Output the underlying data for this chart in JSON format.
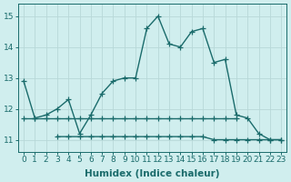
{
  "title": "",
  "xlabel": "Humidex (Indice chaleur)",
  "background_color": "#d0eeee",
  "grid_color": "#b8d8d8",
  "line_color": "#1a6b6b",
  "x_data": [
    0,
    1,
    2,
    3,
    4,
    5,
    6,
    7,
    8,
    9,
    10,
    11,
    12,
    13,
    14,
    15,
    16,
    17,
    18,
    19,
    20,
    21,
    22,
    23
  ],
  "y_main": [
    12.9,
    11.7,
    11.8,
    12.0,
    12.3,
    11.2,
    11.8,
    12.5,
    12.9,
    13.0,
    13.0,
    14.6,
    15.0,
    14.1,
    14.0,
    14.5,
    14.6,
    13.5,
    13.6,
    11.8,
    11.7,
    11.2,
    11.0,
    11.0
  ],
  "y_flat1": [
    11.7,
    11.7,
    11.7,
    11.7,
    11.7,
    11.7,
    11.7,
    11.7,
    11.7,
    11.7,
    11.7,
    11.7,
    11.7,
    11.7,
    11.7,
    11.7,
    11.7,
    11.7,
    11.7,
    11.7,
    null,
    null,
    null,
    null
  ],
  "y_flat2": [
    null,
    null,
    null,
    11.1,
    11.1,
    11.1,
    11.1,
    11.1,
    11.1,
    11.1,
    11.1,
    11.1,
    11.1,
    11.1,
    11.1,
    11.1,
    11.1,
    11.0,
    11.0,
    11.0,
    11.0,
    11.0,
    11.0,
    11.0
  ],
  "ylim": [
    10.6,
    15.4
  ],
  "xlim": [
    -0.5,
    23.5
  ],
  "yticks": [
    11,
    12,
    13,
    14,
    15
  ],
  "xticks": [
    0,
    1,
    2,
    3,
    4,
    5,
    6,
    7,
    8,
    9,
    10,
    11,
    12,
    13,
    14,
    15,
    16,
    17,
    18,
    19,
    20,
    21,
    22,
    23
  ],
  "xlabel_fontsize": 7.5,
  "tick_fontsize": 6.5,
  "linewidth": 1.0,
  "marker": "+",
  "markersize": 4,
  "markeredgewidth": 0.9
}
